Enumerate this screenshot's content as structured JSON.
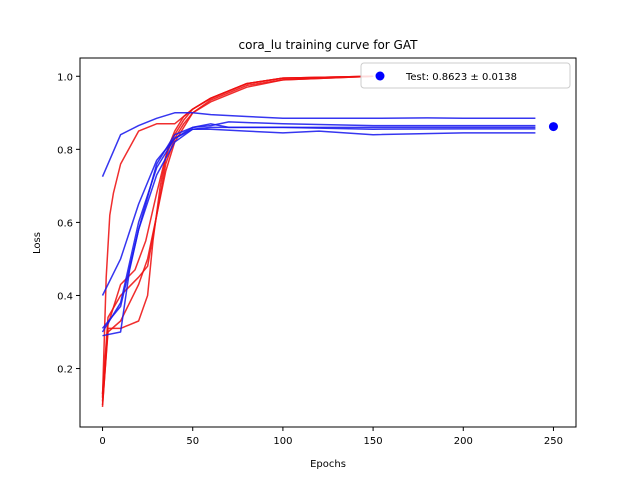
{
  "chart_data": {
    "type": "line",
    "title": "cora_lu training curve for GAT",
    "xlabel": "Epochs",
    "ylabel": "Loss",
    "xlim": [
      -12.5,
      262.5
    ],
    "ylim": [
      0.04,
      1.05
    ],
    "xticks": [
      0,
      50,
      100,
      150,
      200,
      250
    ],
    "yticks": [
      0.2,
      0.4,
      0.6,
      0.8,
      1.0
    ],
    "xtick_labels": [
      "0",
      "50",
      "100",
      "150",
      "200",
      "250"
    ],
    "ytick_labels": [
      "0.2",
      "0.4",
      "0.6",
      "0.8",
      "1.0"
    ],
    "grid": false,
    "legend": {
      "placement": "top-right",
      "label": "Test: 0.8623 ± 0.0138"
    },
    "colors": {
      "train": "#ee1111",
      "val": "#1a1aee",
      "test_point": "#0000ff"
    },
    "test_point": {
      "x": 250,
      "y": 0.8623
    },
    "train_series": [
      {
        "x": [
          0,
          2,
          4,
          6,
          10,
          20,
          30,
          40,
          50,
          60,
          80,
          100,
          150
        ],
        "values": [
          0.12,
          0.45,
          0.62,
          0.68,
          0.76,
          0.85,
          0.87,
          0.87,
          0.91,
          0.94,
          0.98,
          0.995,
          1.0
        ]
      },
      {
        "x": [
          0,
          3,
          10,
          20,
          25,
          30,
          35,
          40,
          45,
          50,
          60,
          80,
          100,
          150
        ],
        "values": [
          0.1,
          0.3,
          0.33,
          0.43,
          0.5,
          0.62,
          0.74,
          0.82,
          0.86,
          0.9,
          0.93,
          0.97,
          0.99,
          1.0
        ]
      },
      {
        "x": [
          0,
          3,
          10,
          20,
          25,
          28,
          32,
          36,
          40,
          45,
          50,
          60,
          80,
          100,
          150
        ],
        "values": [
          0.095,
          0.31,
          0.31,
          0.33,
          0.4,
          0.55,
          0.7,
          0.8,
          0.85,
          0.89,
          0.91,
          0.94,
          0.98,
          0.995,
          1.0
        ]
      },
      {
        "x": [
          0,
          3,
          10,
          18,
          24,
          30,
          35,
          40,
          45,
          50,
          60,
          80,
          100,
          150
        ],
        "values": [
          0.11,
          0.32,
          0.43,
          0.47,
          0.55,
          0.68,
          0.78,
          0.84,
          0.88,
          0.91,
          0.94,
          0.98,
          0.995,
          1.0
        ]
      },
      {
        "x": [
          0,
          3,
          10,
          20,
          25,
          30,
          35,
          40,
          45,
          50,
          60,
          80,
          100,
          150
        ],
        "values": [
          0.13,
          0.34,
          0.4,
          0.45,
          0.48,
          0.62,
          0.76,
          0.83,
          0.87,
          0.9,
          0.935,
          0.975,
          0.99,
          1.0
        ]
      }
    ],
    "val_series": [
      {
        "x": [
          0,
          10,
          20,
          30,
          40,
          50,
          60,
          80,
          100,
          120,
          150,
          180,
          200,
          240
        ],
        "values": [
          0.725,
          0.84,
          0.865,
          0.885,
          0.9,
          0.9,
          0.895,
          0.89,
          0.885,
          0.885,
          0.885,
          0.886,
          0.885,
          0.885
        ]
      },
      {
        "x": [
          0,
          10,
          20,
          30,
          40,
          50,
          60,
          70,
          100,
          150,
          200,
          240
        ],
        "values": [
          0.4,
          0.5,
          0.65,
          0.77,
          0.83,
          0.86,
          0.865,
          0.875,
          0.87,
          0.865,
          0.865,
          0.865
        ]
      },
      {
        "x": [
          0,
          10,
          20,
          30,
          40,
          50,
          60,
          80,
          100,
          120,
          150,
          200,
          240
        ],
        "values": [
          0.3,
          0.38,
          0.6,
          0.75,
          0.83,
          0.855,
          0.855,
          0.85,
          0.845,
          0.85,
          0.84,
          0.845,
          0.845
        ]
      },
      {
        "x": [
          0,
          10,
          15,
          20,
          30,
          40,
          50,
          60,
          80,
          100,
          150,
          200,
          240
        ],
        "values": [
          0.29,
          0.3,
          0.47,
          0.58,
          0.73,
          0.82,
          0.855,
          0.86,
          0.86,
          0.86,
          0.86,
          0.86,
          0.86
        ]
      },
      {
        "x": [
          0,
          10,
          20,
          30,
          40,
          50,
          60,
          70,
          100,
          150,
          200,
          240
        ],
        "values": [
          0.31,
          0.37,
          0.58,
          0.76,
          0.84,
          0.86,
          0.87,
          0.86,
          0.86,
          0.855,
          0.856,
          0.856
        ]
      }
    ]
  }
}
